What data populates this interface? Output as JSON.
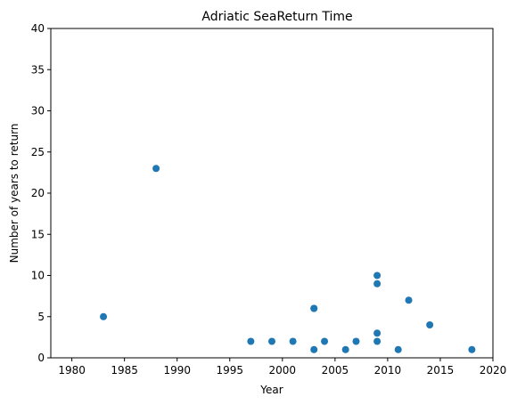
{
  "chart_data": {
    "type": "scatter",
    "title": "Adriatic SeaReturn Time",
    "xlabel": "Year",
    "ylabel": "Number of years to return",
    "xlim": [
      1978,
      2020
    ],
    "ylim": [
      0,
      40
    ],
    "xticks": [
      1980,
      1985,
      1990,
      1995,
      2000,
      2005,
      2010,
      2015,
      2020
    ],
    "yticks": [
      0,
      5,
      10,
      15,
      20,
      25,
      30,
      35,
      40
    ],
    "grid": false,
    "marker_color": "#1f77b4",
    "series": [
      {
        "points": [
          {
            "x": 1983,
            "y": 5
          },
          {
            "x": 1988,
            "y": 23
          },
          {
            "x": 1997,
            "y": 2
          },
          {
            "x": 1999,
            "y": 2
          },
          {
            "x": 2001,
            "y": 2
          },
          {
            "x": 2003,
            "y": 6
          },
          {
            "x": 2003,
            "y": 6
          },
          {
            "x": 2003,
            "y": 1
          },
          {
            "x": 2004,
            "y": 2
          },
          {
            "x": 2006,
            "y": 1
          },
          {
            "x": 2007,
            "y": 2
          },
          {
            "x": 2009,
            "y": 10
          },
          {
            "x": 2009,
            "y": 9
          },
          {
            "x": 2009,
            "y": 3
          },
          {
            "x": 2009,
            "y": 2
          },
          {
            "x": 2011,
            "y": 1
          },
          {
            "x": 2012,
            "y": 7
          },
          {
            "x": 2014,
            "y": 4
          },
          {
            "x": 2018,
            "y": 1
          }
        ]
      }
    ]
  }
}
